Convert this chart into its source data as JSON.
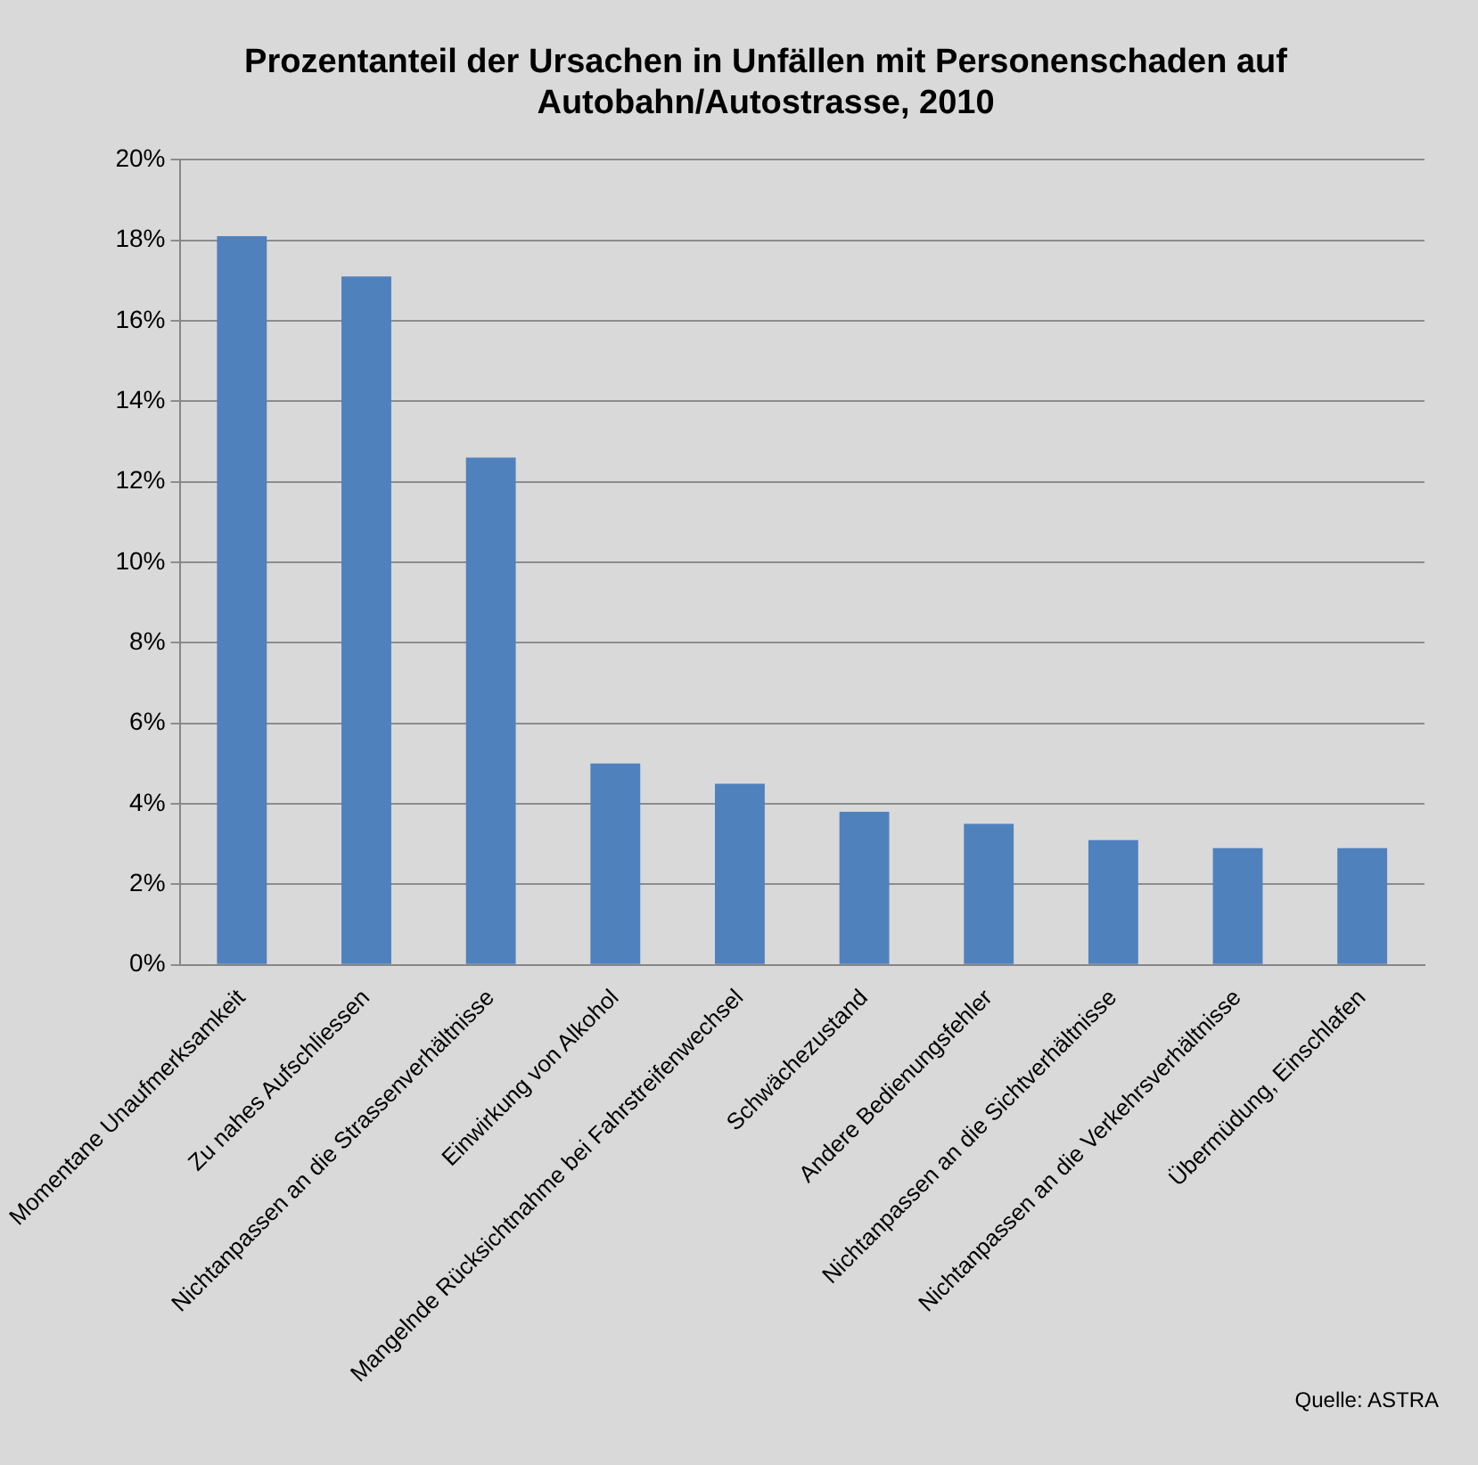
{
  "chart_data": {
    "type": "bar",
    "title": "Prozentanteil der Ursachen in Unfällen mit Personenschaden auf Autobahn/Autostrasse, 2010",
    "categories": [
      "Momentane Unaufmerksamkeit",
      "Zu nahes Aufschliessen",
      "Nichtanpassen an die Strassenverhältnisse",
      "Einwirkung von Alkohol",
      "Mangelnde Rücksichtnahme bei Fahrstreifenwechsel",
      "Schwächezustand",
      "Andere Bedienungsfehler",
      "Nichtanpassen an die Sichtverhältnisse",
      "Nichtanpassen an die Verkehrsverhältnisse",
      "Übermüdung, Einschlafen"
    ],
    "values": [
      18.1,
      17.1,
      12.6,
      5.0,
      4.5,
      3.8,
      3.5,
      3.1,
      2.9,
      2.9
    ],
    "color": "#4f81bd",
    "ylim": [
      0,
      20
    ],
    "yticks": [
      {
        "value": 0,
        "label": "0%"
      },
      {
        "value": 2,
        "label": "2%"
      },
      {
        "value": 4,
        "label": "4%"
      },
      {
        "value": 6,
        "label": "6%"
      },
      {
        "value": 8,
        "label": "8%"
      },
      {
        "value": 10,
        "label": "10%"
      },
      {
        "value": 12,
        "label": "12%"
      },
      {
        "value": 14,
        "label": "14%"
      },
      {
        "value": 16,
        "label": "16%"
      },
      {
        "value": 18,
        "label": "18%"
      },
      {
        "value": 20,
        "label": "20%"
      }
    ],
    "grid": "y",
    "legend": false,
    "annotations": [
      "Quelle: ASTRA"
    ]
  }
}
